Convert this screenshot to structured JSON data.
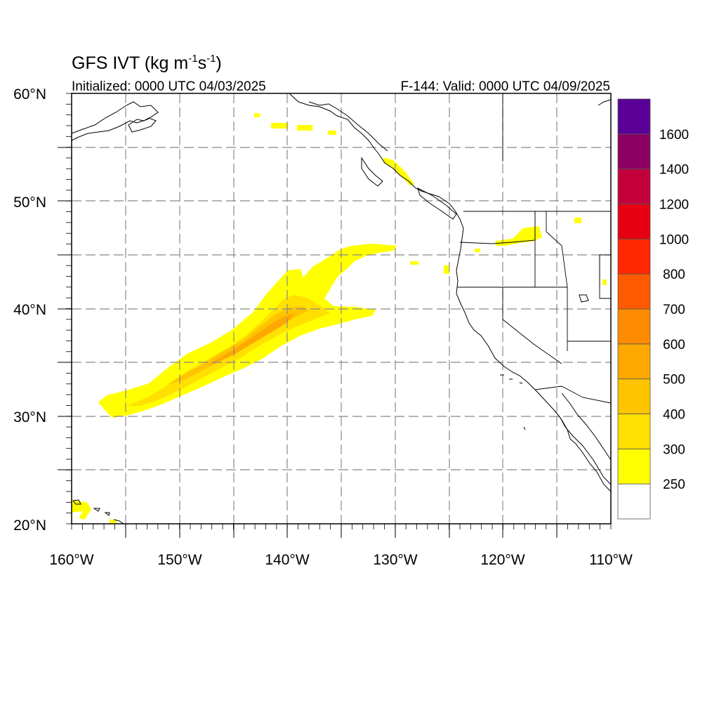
{
  "title": {
    "main": "GFS IVT (kg m",
    "sup1": "-1",
    "mid": "s",
    "sup2": "-1",
    "close": ")"
  },
  "initialized": "Initialized: 0000 UTC 04/03/2025",
  "valid": "F-144: Valid: 0000 UTC 04/09/2025",
  "lat_labels": [
    "60°N",
    "50°N",
    "40°N",
    "30°N",
    "20°N"
  ],
  "lon_labels": [
    "160°W",
    "150°W",
    "140°W",
    "130°W",
    "120°W",
    "110°W"
  ],
  "colorbar": {
    "levels": [
      "250",
      "300",
      "400",
      "500",
      "600",
      "700",
      "800",
      "1000",
      "1200",
      "1400",
      "1600"
    ],
    "colors": [
      "#ffffff",
      "#ffff00",
      "#ffe000",
      "#ffc400",
      "#ffa800",
      "#ff8c00",
      "#ff5a00",
      "#ff2800",
      "#e60012",
      "#c4003c",
      "#8c0064",
      "#5a0096"
    ]
  },
  "map": {
    "lon_range": [
      -160,
      -110
    ],
    "lat_range": [
      20,
      60
    ]
  }
}
